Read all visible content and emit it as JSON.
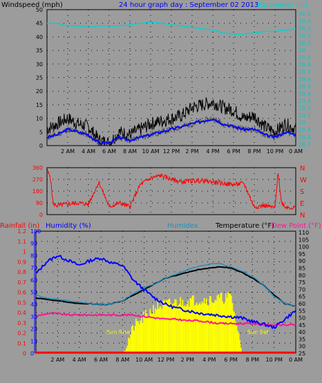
{
  "colors": {
    "background": "#9c9c9c",
    "plot_bg": "#9c9c9c",
    "grid_dot": "#000000",
    "wind_gust": "#000000",
    "wind_avg": "#0000ff",
    "wind_low": "#555555",
    "barometer": "#00d2d2",
    "direction": "#ff0000",
    "rainfall": "#ff0000",
    "humidity": "#0000ff",
    "humidex": "#1e90c0",
    "temperature": "#000000",
    "dew_point": "#ff1493",
    "solar": "#ffff00",
    "axis_right_cyan": "#00c8c8"
  },
  "header": {
    "windspeed_label": "Windspeed (mph)",
    "title": "24 hour graph day : September 02 2013",
    "barometer_label": "Barometer (in)"
  },
  "lower_header": {
    "rainfall_label": "Rainfall (in)",
    "humidity_label": "Humidity (%)",
    "humidex_label": "Humidex",
    "temperature_label": "Temperature (°F)",
    "dewpoint_label": "Dew Point (°F)"
  },
  "annotations": {
    "sunrise": "Sun Rise",
    "sunset": "Sun Set"
  },
  "chart_data": [
    {
      "type": "line",
      "x_ticks": [
        "2 AM",
        "4 AM",
        "6 AM",
        "8 AM",
        "10 AM",
        "12 PM",
        "2 PM",
        "4 PM",
        "6 PM",
        "8 PM",
        "10 PM",
        "0 AM"
      ],
      "ylabel": "Windspeed (mph)",
      "ylim": [
        0,
        50
      ],
      "y_ticks": [
        0,
        5,
        10,
        15,
        20,
        25,
        30,
        35,
        40,
        45,
        50
      ],
      "y2label": "Barometer (in)",
      "y2lim": [
        29.76,
        30.5
      ],
      "y2_ticks": [
        "29.8",
        "29.9",
        "30",
        "30.1",
        "30.2",
        "30.3",
        "30.4",
        "30.5"
      ],
      "y2_tick_values": [
        29.8,
        29.9,
        30.0,
        30.1,
        30.2,
        30.3,
        30.4,
        30.5
      ],
      "y2_extra_ticks": [
        "30.5",
        "30.4",
        "30.3",
        "30.2",
        "30.1",
        "30",
        "29.9",
        "29.8",
        "29.7",
        "29.6",
        "29.5",
        "29.4",
        "29.3",
        "29.2",
        "29.1",
        "29",
        "28.9",
        "28.8",
        "28.7"
      ],
      "x_hours": [
        0,
        1,
        2,
        3,
        4,
        5,
        6,
        7,
        8,
        9,
        10,
        11,
        12,
        13,
        14,
        15,
        16,
        17,
        18,
        19,
        20,
        21,
        22,
        23,
        24
      ],
      "series": [
        {
          "name": "Gust",
          "values": [
            6,
            8,
            10,
            8,
            7,
            2,
            1,
            5,
            4,
            6,
            8,
            9,
            10,
            11,
            14,
            15,
            16,
            14,
            13,
            10,
            11,
            7,
            5,
            8,
            6
          ]
        },
        {
          "name": "Average",
          "values": [
            3,
            4,
            6,
            5,
            4,
            1,
            1,
            3,
            2,
            3,
            4,
            5,
            6,
            7,
            8,
            9,
            10,
            8,
            7,
            6,
            6,
            4,
            3,
            5,
            4
          ]
        },
        {
          "name": "Barometer",
          "values": [
            45,
            45,
            44,
            44,
            43.5,
            44,
            44,
            44,
            44.5,
            45,
            45.5,
            45,
            44.5,
            44,
            43.5,
            43,
            42.5,
            41.5,
            41,
            41,
            41.5,
            42,
            42,
            42.5,
            43
          ]
        }
      ]
    },
    {
      "type": "line",
      "ylabel": "Wind direction",
      "ylim": [
        0,
        360
      ],
      "y_ticks": [
        0,
        90,
        180,
        270,
        360
      ],
      "right_labels": [
        "N",
        "W",
        "S",
        "E",
        "N"
      ],
      "x_hours": [
        0,
        0.3,
        0.6,
        1,
        2,
        3,
        4,
        5,
        6,
        7,
        8,
        9,
        10,
        11,
        12,
        13,
        14,
        15,
        16,
        17,
        18,
        19,
        20,
        21,
        22,
        22.3,
        22.6,
        23,
        24
      ],
      "series": [
        {
          "name": "Direction",
          "values": [
            330,
            300,
            80,
            70,
            80,
            90,
            80,
            250,
            60,
            90,
            60,
            230,
            280,
            300,
            270,
            250,
            260,
            260,
            250,
            240,
            230,
            240,
            60,
            70,
            50,
            330,
            100,
            60,
            50
          ]
        }
      ]
    },
    {
      "type": "line",
      "rain_ticks": [
        0,
        0.1,
        0.2,
        0.3,
        0.4,
        0.5,
        0.6,
        0.7,
        0.8,
        0.9,
        1,
        1.1,
        1.2
      ],
      "humidity_ticks": [
        0,
        10,
        20,
        30,
        40,
        50,
        60,
        70,
        80,
        90,
        100
      ],
      "temp_ticks": [
        25,
        30,
        35,
        40,
        45,
        50,
        55,
        60,
        65,
        70,
        75,
        80,
        85,
        90,
        95,
        100,
        105,
        110
      ],
      "ylim_humidity": [
        0,
        100
      ],
      "ylim_temp": [
        25,
        111
      ],
      "x_hours": [
        0,
        1,
        2,
        3,
        4,
        5,
        6,
        7,
        8,
        9,
        10,
        11,
        12,
        13,
        14,
        15,
        16,
        17,
        18,
        19,
        20,
        21,
        22,
        23,
        24
      ],
      "series": [
        {
          "name": "Humidity (%)",
          "values": [
            65,
            75,
            80,
            76,
            72,
            76,
            78,
            74,
            72,
            60,
            52,
            45,
            40,
            37,
            35,
            33,
            32,
            31,
            30,
            29,
            26,
            24,
            21,
            28,
            35
          ]
        },
        {
          "name": "Humidex",
          "values": [
            66,
            64,
            63,
            62,
            61,
            60,
            59,
            60,
            62,
            67,
            71,
            74,
            78,
            81,
            84,
            86,
            88,
            88,
            86,
            83,
            79,
            73,
            65,
            60,
            58
          ]
        },
        {
          "name": "Temperature (°F)",
          "values": [
            64,
            63,
            62,
            61,
            60,
            60,
            59,
            60,
            62,
            66,
            70,
            74,
            78,
            80,
            82,
            84,
            85,
            86,
            85,
            82,
            78,
            73,
            66,
            60,
            58
          ]
        },
        {
          "name": "Dew Point (°F)",
          "values": [
            51,
            53,
            53,
            52,
            52,
            52,
            52,
            52,
            52,
            52,
            51,
            50,
            49,
            49,
            48,
            48,
            47,
            46,
            46,
            46,
            46,
            45,
            45,
            45,
            45
          ]
        },
        {
          "name": "Solar",
          "values": [
            0,
            0,
            0,
            0,
            0,
            0,
            0,
            0,
            0,
            22,
            30,
            38,
            40,
            42,
            43,
            44,
            44,
            45,
            46,
            0,
            0,
            0,
            0,
            0,
            0
          ]
        },
        {
          "name": "Rainfall (in)",
          "values": [
            0,
            0,
            0,
            0,
            0,
            0,
            0,
            0,
            0,
            0,
            0,
            0,
            0,
            0,
            0,
            0,
            0,
            0,
            0,
            0,
            0,
            0,
            0,
            0,
            0
          ]
        }
      ]
    }
  ]
}
